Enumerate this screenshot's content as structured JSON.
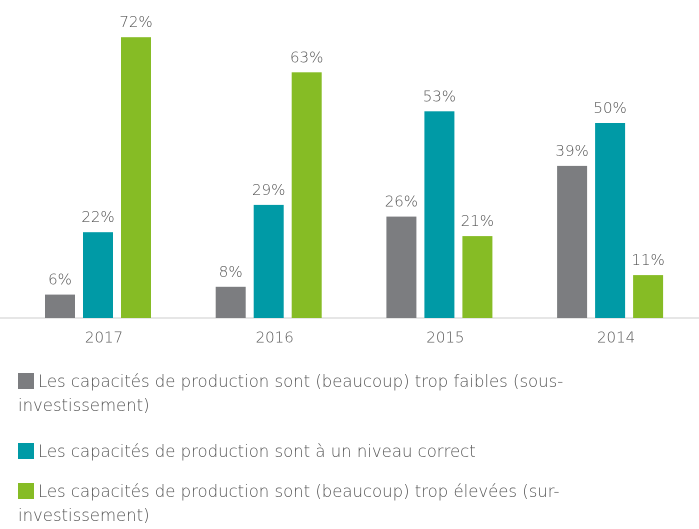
{
  "chart_data": {
    "type": "bar",
    "categories": [
      "2017",
      "2016",
      "2015",
      "2014"
    ],
    "series": [
      {
        "name": "Les capacités de production sont (beaucoup) trop faibles (sous-investissement)",
        "color": "#7c7d80",
        "values": [
          6,
          8,
          26,
          39
        ],
        "value_labels": [
          "6%",
          "8%",
          "26%",
          "39%"
        ]
      },
      {
        "name": "Les capacités de production sont à un niveau correct",
        "color": "#009aa6",
        "values": [
          22,
          29,
          53,
          50
        ],
        "value_labels": [
          "22%",
          "29%",
          "53%",
          "50%"
        ]
      },
      {
        "name": "Les capacités de production sont (beaucoup) trop élevées (sur-investissement)",
        "color": "#86bc25",
        "values": [
          72,
          63,
          21,
          11
        ],
        "value_labels": [
          "72%",
          "63%",
          "21%",
          "11%"
        ]
      }
    ]
  }
}
